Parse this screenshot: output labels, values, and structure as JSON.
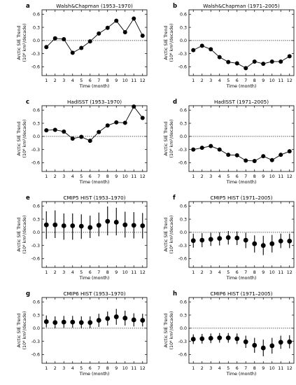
{
  "figure": {
    "colors": {
      "line": "#000000",
      "marker": "#000000",
      "zero_line": "#000000",
      "background": "#ffffff"
    }
  },
  "chart_data": [
    {
      "type": "line",
      "letter": "a",
      "title": "Walsh&Chapman (1953–1970)",
      "xlabel": "Time (month)",
      "ylabel_line1": "Arctic SIE Trend",
      "ylabel_line2": "(10⁶ km²/decade)",
      "x": [
        1,
        2,
        3,
        4,
        5,
        6,
        7,
        8,
        9,
        10,
        11,
        12
      ],
      "values": [
        -0.15,
        0.05,
        0.03,
        -0.28,
        -0.17,
        -0.02,
        0.16,
        0.29,
        0.45,
        0.19,
        0.5,
        0.11
      ],
      "xlim": [
        0.5,
        12.5
      ],
      "ylim": [
        -0.8,
        0.7
      ],
      "yticks": [
        -0.6,
        -0.3,
        0.0,
        0.3,
        0.6
      ],
      "ytick_labels": [
        "-0.6",
        "-0.3",
        "0.0",
        "0.3",
        "0.6"
      ],
      "xticks": [
        1,
        2,
        3,
        4,
        5,
        6,
        7,
        8,
        9,
        10,
        11,
        12
      ],
      "xtick_labels": [
        "1",
        "2",
        "3",
        "4",
        "5",
        "6",
        "7",
        "8",
        "9",
        "10",
        "11",
        "12"
      ],
      "zero_line": "dotted",
      "grid": false
    },
    {
      "type": "line",
      "letter": "b",
      "title": "Walsh&Chapman (1971–2005)",
      "xlabel": "Time (month)",
      "ylabel_line1": "Arctic SIE Trend",
      "ylabel_line2": "(10⁶ km²/decade)",
      "x": [
        1,
        2,
        3,
        4,
        5,
        6,
        7,
        8,
        9,
        10,
        11,
        12
      ],
      "values": [
        -0.22,
        -0.12,
        -0.2,
        -0.38,
        -0.49,
        -0.52,
        -0.63,
        -0.48,
        -0.53,
        -0.48,
        -0.48,
        -0.36
      ],
      "xlim": [
        0.5,
        12.5
      ],
      "ylim": [
        -0.8,
        0.7
      ],
      "yticks": [
        -0.6,
        -0.3,
        0.0,
        0.3,
        0.6
      ],
      "ytick_labels": [
        "-0.6",
        "-0.3",
        "0.0",
        "0.3",
        "0.6"
      ],
      "xticks": [
        1,
        2,
        3,
        4,
        5,
        6,
        7,
        8,
        9,
        10,
        11,
        12
      ],
      "xtick_labels": [
        "1",
        "2",
        "3",
        "4",
        "5",
        "6",
        "7",
        "8",
        "9",
        "10",
        "11",
        "12"
      ],
      "zero_line": "dotted",
      "grid": false
    },
    {
      "type": "line",
      "letter": "c",
      "title": "HadISST (1953–1970)",
      "xlabel": "Time (month)",
      "ylabel_line1": "Arctic SIE Trend",
      "ylabel_line2": "(10⁶ km²/decade)",
      "x": [
        1,
        2,
        3,
        4,
        5,
        6,
        7,
        8,
        9,
        10,
        11,
        12
      ],
      "values": [
        0.14,
        0.15,
        0.11,
        -0.05,
        -0.01,
        -0.1,
        0.1,
        0.25,
        0.32,
        0.31,
        0.68,
        0.42
      ],
      "xlim": [
        0.5,
        12.5
      ],
      "ylim": [
        -0.8,
        0.7
      ],
      "yticks": [
        -0.6,
        -0.3,
        0.0,
        0.3,
        0.6
      ],
      "ytick_labels": [
        "-0.6",
        "-0.3",
        "0.0",
        "0.3",
        "0.6"
      ],
      "xticks": [
        1,
        2,
        3,
        4,
        5,
        6,
        7,
        8,
        9,
        10,
        11,
        12
      ],
      "xtick_labels": [
        "1",
        "2",
        "3",
        "4",
        "5",
        "6",
        "7",
        "8",
        "9",
        "10",
        "11",
        "12"
      ],
      "zero_line": "dotted",
      "grid": false
    },
    {
      "type": "line",
      "letter": "d",
      "title": "HadISST (1971–2005)",
      "xlabel": "Time (month)",
      "ylabel_line1": "Arctic SIE Trend",
      "ylabel_line2": "(10⁶ km²/decade)",
      "x": [
        1,
        2,
        3,
        4,
        5,
        6,
        7,
        8,
        9,
        10,
        11,
        12
      ],
      "values": [
        -0.3,
        -0.26,
        -0.22,
        -0.3,
        -0.42,
        -0.43,
        -0.55,
        -0.56,
        -0.45,
        -0.54,
        -0.42,
        -0.34
      ],
      "xlim": [
        0.5,
        12.5
      ],
      "ylim": [
        -0.8,
        0.7
      ],
      "yticks": [
        -0.6,
        -0.3,
        0.0,
        0.3,
        0.6
      ],
      "ytick_labels": [
        "-0.6",
        "-0.3",
        "0.0",
        "0.3",
        "0.6"
      ],
      "xticks": [
        1,
        2,
        3,
        4,
        5,
        6,
        7,
        8,
        9,
        10,
        11,
        12
      ],
      "xtick_labels": [
        "1",
        "2",
        "3",
        "4",
        "5",
        "6",
        "7",
        "8",
        "9",
        "10",
        "11",
        "12"
      ],
      "zero_line": "dotted",
      "grid": false
    },
    {
      "type": "scatter",
      "letter": "e",
      "title": "CMIP5 HIST (1953–1970)",
      "xlabel": "Time (month)",
      "ylabel_line1": "Arctic SIE Trend",
      "ylabel_line2": "(10⁶ km²/decade)",
      "x": [
        1,
        2,
        3,
        4,
        5,
        6,
        7,
        8,
        9,
        10,
        11,
        12
      ],
      "values": [
        0.17,
        0.17,
        0.15,
        0.15,
        0.14,
        0.11,
        0.16,
        0.25,
        0.23,
        0.17,
        0.16,
        0.15
      ],
      "err_low": [
        -0.15,
        -0.13,
        -0.17,
        -0.17,
        -0.15,
        -0.13,
        -0.09,
        -0.07,
        -0.07,
        -0.12,
        -0.14,
        -0.14
      ],
      "err_high": [
        0.48,
        0.5,
        0.43,
        0.43,
        0.41,
        0.38,
        0.45,
        0.59,
        0.56,
        0.47,
        0.46,
        0.44
      ],
      "xlim": [
        0.5,
        12.5
      ],
      "ylim": [
        -0.8,
        0.7
      ],
      "yticks": [
        -0.6,
        -0.3,
        0.0,
        0.3,
        0.6
      ],
      "ytick_labels": [
        "-0.6",
        "-0.3",
        "0.0",
        "0.3",
        "0.6"
      ],
      "xticks": [
        1,
        2,
        3,
        4,
        5,
        6,
        7,
        8,
        9,
        10,
        11,
        12
      ],
      "xtick_labels": [
        "1",
        "2",
        "3",
        "4",
        "5",
        "6",
        "7",
        "8",
        "9",
        "10",
        "11",
        "12"
      ],
      "zero_line": "dotted",
      "grid": false
    },
    {
      "type": "scatter",
      "letter": "f",
      "title": "CMIP5 HIST (1971–2005)",
      "xlabel": "Time (month)",
      "ylabel_line1": "Arctic SIE Trend",
      "ylabel_line2": "(10⁶ km²/decade)",
      "x": [
        1,
        2,
        3,
        4,
        5,
        6,
        7,
        8,
        9,
        10,
        11,
        12
      ],
      "values": [
        -0.19,
        -0.18,
        -0.16,
        -0.14,
        -0.12,
        -0.13,
        -0.18,
        -0.26,
        -0.3,
        -0.26,
        -0.2,
        -0.2
      ],
      "err_low": [
        -0.35,
        -0.34,
        -0.31,
        -0.3,
        -0.28,
        -0.29,
        -0.36,
        -0.46,
        -0.52,
        -0.46,
        -0.36,
        -0.36
      ],
      "err_high": [
        -0.03,
        -0.02,
        -0.01,
        0.0,
        0.03,
        0.02,
        -0.01,
        -0.07,
        -0.08,
        -0.06,
        -0.03,
        -0.03
      ],
      "xlim": [
        0.5,
        12.5
      ],
      "ylim": [
        -0.8,
        0.7
      ],
      "yticks": [
        -0.6,
        -0.3,
        0.0,
        0.3,
        0.6
      ],
      "ytick_labels": [
        "-0.6",
        "-0.3",
        "0.0",
        "0.3",
        "0.6"
      ],
      "xticks": [
        1,
        2,
        3,
        4,
        5,
        6,
        7,
        8,
        9,
        10,
        11,
        12
      ],
      "xtick_labels": [
        "1",
        "2",
        "3",
        "4",
        "5",
        "6",
        "7",
        "8",
        "9",
        "10",
        "11",
        "12"
      ],
      "zero_line": "dotted",
      "grid": false
    },
    {
      "type": "scatter",
      "letter": "g",
      "title": "CMIP6 HIST (1953–1970)",
      "xlabel": "Time (month)",
      "ylabel_line1": "Arctic SIE Trend",
      "ylabel_line2": "(10⁶ km²/decade)",
      "x": [
        1,
        2,
        3,
        4,
        5,
        6,
        7,
        8,
        9,
        10,
        11,
        12
      ],
      "values": [
        0.15,
        0.13,
        0.14,
        0.14,
        0.13,
        0.13,
        0.18,
        0.22,
        0.26,
        0.23,
        0.19,
        0.18
      ],
      "err_low": [
        0.02,
        0.0,
        0.01,
        0.01,
        0.0,
        0.0,
        0.03,
        0.06,
        0.08,
        0.06,
        0.04,
        0.04
      ],
      "err_high": [
        0.29,
        0.27,
        0.28,
        0.28,
        0.27,
        0.27,
        0.33,
        0.38,
        0.44,
        0.4,
        0.34,
        0.33
      ],
      "xlim": [
        0.5,
        12.5
      ],
      "ylim": [
        -0.8,
        0.7
      ],
      "yticks": [
        -0.6,
        -0.3,
        0.0,
        0.3,
        0.6
      ],
      "ytick_labels": [
        "-0.6",
        "-0.3",
        "0.0",
        "0.3",
        "0.6"
      ],
      "xticks": [
        1,
        2,
        3,
        4,
        5,
        6,
        7,
        8,
        9,
        10,
        11,
        12
      ],
      "xtick_labels": [
        "1",
        "2",
        "3",
        "4",
        "5",
        "6",
        "7",
        "8",
        "9",
        "10",
        "11",
        "12"
      ],
      "zero_line": "dotted",
      "grid": false
    },
    {
      "type": "scatter",
      "letter": "h",
      "title": "CMIP6 HIST (1971–2005)",
      "xlabel": "Time (month)",
      "ylabel_line1": "Arctic SIE Trend",
      "ylabel_line2": "(10⁶ km²/decade)",
      "x": [
        1,
        2,
        3,
        4,
        5,
        6,
        7,
        8,
        9,
        10,
        11,
        12
      ],
      "values": [
        -0.25,
        -0.24,
        -0.23,
        -0.22,
        -0.22,
        -0.24,
        -0.31,
        -0.39,
        -0.45,
        -0.4,
        -0.32,
        -0.31
      ],
      "err_low": [
        -0.36,
        -0.35,
        -0.34,
        -0.33,
        -0.33,
        -0.36,
        -0.45,
        -0.56,
        -0.64,
        -0.58,
        -0.47,
        -0.46
      ],
      "err_high": [
        -0.14,
        -0.13,
        -0.12,
        -0.11,
        -0.11,
        -0.12,
        -0.17,
        -0.22,
        -0.26,
        -0.22,
        -0.17,
        -0.16
      ],
      "xlim": [
        0.5,
        12.5
      ],
      "ylim": [
        -0.8,
        0.7
      ],
      "yticks": [
        -0.6,
        -0.3,
        0.0,
        0.3,
        0.6
      ],
      "ytick_labels": [
        "-0.6",
        "-0.3",
        "0.0",
        "0.3",
        "0.6"
      ],
      "xticks": [
        1,
        2,
        3,
        4,
        5,
        6,
        7,
        8,
        9,
        10,
        11,
        12
      ],
      "xtick_labels": [
        "1",
        "2",
        "3",
        "4",
        "5",
        "6",
        "7",
        "8",
        "9",
        "10",
        "11",
        "12"
      ],
      "zero_line": "dotted",
      "grid": false
    }
  ]
}
